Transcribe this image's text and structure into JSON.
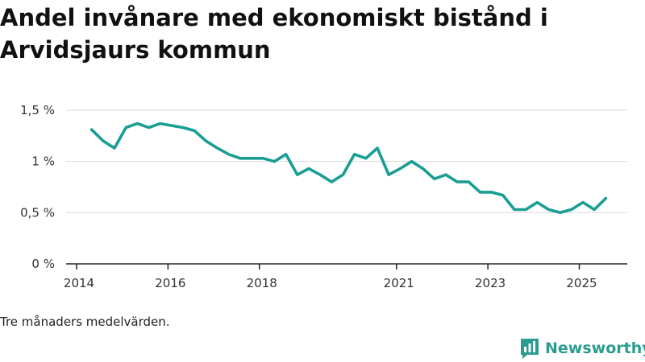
{
  "title": "Andel invånare med ekonomiskt bistånd i Arvidsjaurs kommun",
  "note": "Tre månaders medelvärden.",
  "brand": {
    "name": "Newsworthy"
  },
  "colors": {
    "line": "#1a9e94",
    "grid": "#d9d9d9",
    "brand": "#2a9d8f"
  },
  "chart_data": {
    "type": "line",
    "title": "Andel invånare med ekonomiskt bistånd i Arvidsjaurs kommun",
    "xlabel": "",
    "ylabel": "",
    "xlim": [
      2014.0,
      2026.05
    ],
    "ylim": [
      0,
      1.5
    ],
    "y_ticks": [
      {
        "value": 0,
        "label": "0 %"
      },
      {
        "value": 0.5,
        "label": "0,5 %"
      },
      {
        "value": 1.0,
        "label": "1 %"
      },
      {
        "value": 1.5,
        "label": "1,5 %"
      }
    ],
    "x_ticks": [
      {
        "value": 2014.0,
        "label": "2014"
      },
      {
        "value": 2016.0,
        "label": "2016"
      },
      {
        "value": 2018.0,
        "label": "2018"
      },
      {
        "value": 2021.0,
        "label": "2021"
      },
      {
        "value": 2023.0,
        "label": "2023"
      },
      {
        "value": 2025.0,
        "label": "2025"
      }
    ],
    "series": [
      {
        "name": "Andel invånare med ekonomiskt bistånd",
        "x": [
          2014.33,
          2014.58,
          2014.83,
          2015.08,
          2015.33,
          2015.58,
          2015.83,
          2016.08,
          2016.33,
          2016.58,
          2016.83,
          2017.08,
          2017.33,
          2017.58,
          2017.83,
          2018.08,
          2018.33,
          2018.58,
          2018.83,
          2019.08,
          2019.33,
          2019.58,
          2019.83,
          2020.08,
          2020.33,
          2020.58,
          2020.83,
          2021.08,
          2021.33,
          2021.58,
          2021.83,
          2022.08,
          2022.33,
          2022.58,
          2022.83,
          2023.08,
          2023.33,
          2023.58,
          2023.83,
          2024.08,
          2024.33,
          2024.58,
          2024.83,
          2025.08,
          2025.33,
          2025.58
        ],
        "values": [
          1.31,
          1.2,
          1.13,
          1.33,
          1.37,
          1.33,
          1.37,
          1.35,
          1.33,
          1.3,
          1.2,
          1.13,
          1.07,
          1.03,
          1.03,
          1.03,
          1.0,
          1.07,
          0.87,
          0.93,
          0.87,
          0.8,
          0.87,
          1.07,
          1.03,
          1.13,
          0.87,
          0.93,
          1.0,
          0.93,
          0.83,
          0.87,
          0.8,
          0.8,
          0.7,
          0.7,
          0.67,
          0.53,
          0.53,
          0.6,
          0.53,
          0.5,
          0.53,
          0.6,
          0.53,
          0.64
        ]
      }
    ],
    "grid": true,
    "legend": "none"
  }
}
